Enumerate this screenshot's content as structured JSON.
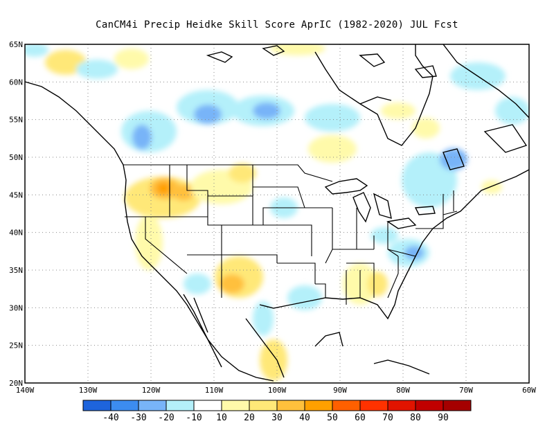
{
  "title": "CanCM4i Precip Heidke Skill Score AprIC (1982-2020) JUL Fcst",
  "lat_labels": [
    "65N",
    "60N",
    "55N",
    "50N",
    "45N",
    "40N",
    "35N",
    "30N",
    "25N",
    "20N"
  ],
  "lon_labels": [
    "140W",
    "130W",
    "120W",
    "110W",
    "100W",
    "90W",
    "80W",
    "70W",
    "60W"
  ],
  "colorbar": {
    "labels": [
      "-40",
      "-30",
      "-20",
      "-10",
      "10",
      "20",
      "30",
      "40",
      "50",
      "60",
      "70",
      "80",
      "90"
    ],
    "colors": [
      "#1e64dc",
      "#3c8cf0",
      "#78b4f8",
      "#b4f0fa",
      "#ffffff",
      "#fffaaa",
      "#ffe878",
      "#ffc03c",
      "#ffa000",
      "#ff6000",
      "#ff3200",
      "#e11400",
      "#c00000",
      "#a50000"
    ]
  }
}
